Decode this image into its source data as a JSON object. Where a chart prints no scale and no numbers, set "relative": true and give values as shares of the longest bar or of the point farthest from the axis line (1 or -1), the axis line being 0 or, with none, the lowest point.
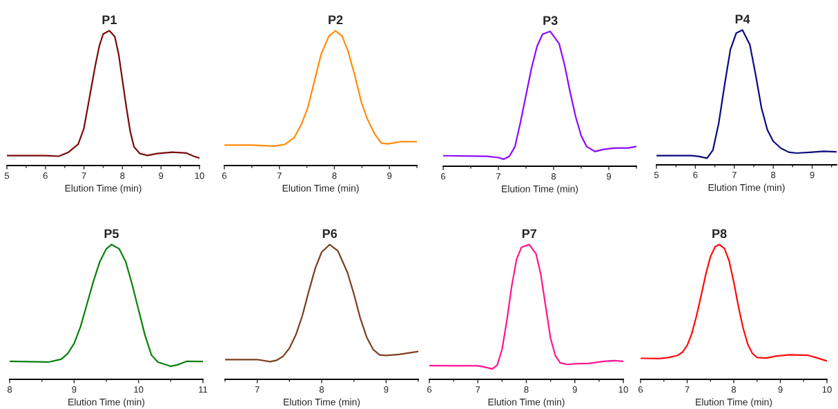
{
  "chart_data": [
    {
      "type": "line",
      "title": "P1",
      "xlabel": "Elution Time (min)",
      "relative": true,
      "color": "#7b0a0a",
      "xlim": [
        5,
        10
      ],
      "xticks": [
        5,
        6,
        7,
        8,
        9,
        10
      ],
      "x": [
        5,
        6,
        6.35,
        6.6,
        6.85,
        7.0,
        7.1,
        7.2,
        7.3,
        7.4,
        7.5,
        7.66,
        7.8,
        7.9,
        8.0,
        8.1,
        8.2,
        8.3,
        8.45,
        8.65,
        8.9,
        9.3,
        9.65,
        9.85,
        10
      ],
      "values": [
        0.073,
        0.073,
        0.069,
        0.099,
        0.158,
        0.276,
        0.434,
        0.592,
        0.75,
        0.888,
        0.976,
        1.0,
        0.957,
        0.828,
        0.631,
        0.434,
        0.256,
        0.138,
        0.089,
        0.075,
        0.089,
        0.099,
        0.093,
        0.069,
        0.055
      ]
    },
    {
      "type": "line",
      "title": "P2",
      "xlabel": "Elution Time (min)",
      "relative": true,
      "color": "#ff8c0a",
      "xlim": [
        6,
        9.5
      ],
      "xticks": [
        6,
        7,
        8,
        9
      ],
      "x": [
        6,
        6.5,
        6.9,
        7.1,
        7.27,
        7.4,
        7.52,
        7.64,
        7.76,
        7.9,
        8.02,
        8.14,
        8.25,
        8.37,
        8.49,
        8.6,
        8.73,
        8.85,
        8.97,
        9.21,
        9.5
      ],
      "values": [
        0.152,
        0.152,
        0.144,
        0.157,
        0.207,
        0.305,
        0.433,
        0.63,
        0.827,
        0.96,
        1.0,
        0.96,
        0.846,
        0.67,
        0.47,
        0.344,
        0.236,
        0.167,
        0.161,
        0.177,
        0.177
      ]
    },
    {
      "type": "line",
      "title": "P3",
      "xlabel": "Elution Time (min)",
      "relative": true,
      "color": "#8b0aff",
      "xlim": [
        6,
        9.5
      ],
      "xticks": [
        6,
        7,
        8,
        9
      ],
      "x": [
        6,
        6.8,
        7.0,
        7.1,
        7.2,
        7.3,
        7.4,
        7.5,
        7.6,
        7.7,
        7.8,
        7.94,
        8.1,
        8.2,
        8.3,
        8.4,
        8.5,
        8.6,
        8.75,
        8.9,
        9.1,
        9.35,
        9.5
      ],
      "values": [
        0.078,
        0.074,
        0.064,
        0.052,
        0.074,
        0.145,
        0.326,
        0.527,
        0.728,
        0.889,
        0.98,
        1.0,
        0.909,
        0.748,
        0.547,
        0.366,
        0.225,
        0.145,
        0.109,
        0.125,
        0.135,
        0.135,
        0.147
      ]
    },
    {
      "type": "line",
      "title": "P4",
      "xlabel": "Elution Time (min)",
      "relative": true,
      "color": "#0a0a80",
      "xlim": [
        5,
        9.63
      ],
      "xticks": [
        5,
        6,
        7,
        8,
        9
      ],
      "x": [
        5,
        5.9,
        6.1,
        6.3,
        6.45,
        6.6,
        6.75,
        6.9,
        7.05,
        7.21,
        7.4,
        7.55,
        7.7,
        7.85,
        8.0,
        8.2,
        8.4,
        8.6,
        9.0,
        9.3,
        9.63
      ],
      "values": [
        0.068,
        0.068,
        0.062,
        0.049,
        0.109,
        0.308,
        0.591,
        0.855,
        0.977,
        1.0,
        0.892,
        0.666,
        0.421,
        0.26,
        0.175,
        0.123,
        0.094,
        0.087,
        0.094,
        0.1,
        0.096
      ]
    },
    {
      "type": "line",
      "title": "P5",
      "xlabel": "Elution Time (min)",
      "relative": true,
      "color": "#0a800a",
      "xlim": [
        8,
        11
      ],
      "xticks": [
        8,
        9,
        10,
        11
      ],
      "x": [
        8,
        8.6,
        8.8,
        8.9,
        9.0,
        9.1,
        9.2,
        9.3,
        9.4,
        9.5,
        9.58,
        9.7,
        9.8,
        9.9,
        10.0,
        10.1,
        10.2,
        10.3,
        10.5,
        10.6,
        10.75,
        11
      ],
      "values": [
        0.134,
        0.128,
        0.149,
        0.191,
        0.265,
        0.391,
        0.559,
        0.727,
        0.874,
        0.968,
        1.0,
        0.968,
        0.874,
        0.706,
        0.517,
        0.328,
        0.181,
        0.128,
        0.097,
        0.107,
        0.134,
        0.132
      ]
    },
    {
      "type": "line",
      "title": "P6",
      "xlabel": "Elution Time (min)",
      "relative": true,
      "color": "#7b3f1e",
      "xlim": [
        6.5,
        9.5
      ],
      "xticks": [
        7,
        8,
        9
      ],
      "x": [
        6.5,
        7.0,
        7.2,
        7.3,
        7.4,
        7.5,
        7.6,
        7.7,
        7.8,
        7.9,
        8.0,
        8.125,
        8.25,
        8.4,
        8.5,
        8.6,
        8.7,
        8.8,
        8.9,
        9.0,
        9.2,
        9.5
      ],
      "values": [
        0.147,
        0.147,
        0.131,
        0.141,
        0.171,
        0.231,
        0.331,
        0.472,
        0.653,
        0.823,
        0.944,
        1.0,
        0.954,
        0.793,
        0.633,
        0.452,
        0.311,
        0.221,
        0.181,
        0.177,
        0.185,
        0.207
      ]
    },
    {
      "type": "line",
      "title": "P7",
      "xlabel": "Elution Time (min)",
      "relative": true,
      "color": "#ff1493",
      "xlim": [
        6,
        10
      ],
      "xticks": [
        6,
        7,
        8,
        9,
        10
      ],
      "x": [
        6,
        7.0,
        7.15,
        7.3,
        7.4,
        7.5,
        7.6,
        7.7,
        7.8,
        7.9,
        8.06,
        8.2,
        8.3,
        8.4,
        8.5,
        8.6,
        8.7,
        8.85,
        9.0,
        9.3,
        9.6,
        9.8,
        10
      ],
      "values": [
        0.102,
        0.1,
        0.09,
        0.077,
        0.106,
        0.224,
        0.44,
        0.695,
        0.892,
        0.98,
        1.0,
        0.931,
        0.774,
        0.538,
        0.303,
        0.175,
        0.122,
        0.11,
        0.116,
        0.118,
        0.134,
        0.139,
        0.134
      ]
    },
    {
      "type": "line",
      "title": "P8",
      "xlabel": "Elution Time (min)",
      "relative": true,
      "color": "#ff0a0a",
      "xlim": [
        6,
        10
      ],
      "xticks": [
        6,
        7,
        8,
        9,
        10
      ],
      "x": [
        6,
        6.4,
        6.6,
        6.8,
        6.9,
        7.0,
        7.1,
        7.2,
        7.3,
        7.4,
        7.5,
        7.6,
        7.69,
        7.8,
        7.9,
        8.0,
        8.1,
        8.2,
        8.3,
        8.4,
        8.5,
        8.7,
        8.9,
        9.2,
        9.6,
        9.8,
        10
      ],
      "values": [
        0.156,
        0.154,
        0.162,
        0.178,
        0.202,
        0.251,
        0.341,
        0.471,
        0.621,
        0.78,
        0.91,
        0.984,
        1.0,
        0.97,
        0.88,
        0.721,
        0.541,
        0.381,
        0.261,
        0.192,
        0.162,
        0.158,
        0.172,
        0.182,
        0.178,
        0.158,
        0.136
      ]
    }
  ]
}
